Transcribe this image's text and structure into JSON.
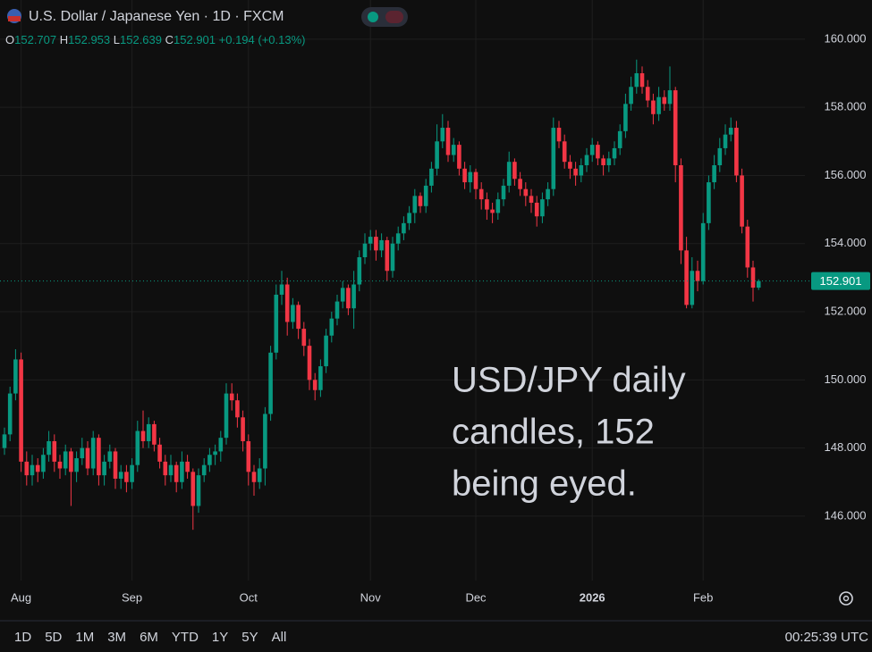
{
  "chart_data": {
    "type": "candlestick",
    "title": "U.S. Dollar / Japanese Yen · 1D · FXCM",
    "ohlc_legend": [
      {
        "label": "O",
        "value": 152.707
      },
      {
        "label": "H",
        "value": 152.953
      },
      {
        "label": "L",
        "value": 152.639
      },
      {
        "label": "C",
        "value": 152.901
      }
    ],
    "change": {
      "value": 0.194,
      "label": "+0.194"
    },
    "change_pct": {
      "value": 0.13,
      "label": "(+0.13%)"
    },
    "last_price": {
      "value": 152.901,
      "label": "152.901"
    },
    "annotation": [
      "USD/JPY daily",
      "candles, 152",
      "being eyed."
    ],
    "up_color": "#089981",
    "down_color": "#f23645",
    "ylim": [
      144.11,
      161.15
    ],
    "yticks": [
      {
        "value": 146,
        "label": "146.000"
      },
      {
        "value": 148,
        "label": "148.000"
      },
      {
        "value": 150,
        "label": "150.000"
      },
      {
        "value": 152,
        "label": "152.000"
      },
      {
        "value": 154,
        "label": "154.000"
      },
      {
        "value": 156,
        "label": "156.000"
      },
      {
        "value": 158,
        "label": "158.000"
      },
      {
        "value": 160,
        "label": "160.000"
      }
    ],
    "grid": true,
    "categories": [
      null,
      null,
      null,
      "Aug",
      null,
      null,
      null,
      null,
      null,
      null,
      null,
      null,
      null,
      null,
      null,
      null,
      null,
      null,
      null,
      null,
      null,
      null,
      null,
      "Sep",
      null,
      null,
      null,
      null,
      null,
      null,
      null,
      null,
      null,
      null,
      null,
      null,
      null,
      null,
      null,
      null,
      null,
      null,
      null,
      null,
      "Oct",
      null,
      null,
      null,
      null,
      null,
      null,
      null,
      null,
      null,
      null,
      null,
      null,
      null,
      null,
      null,
      null,
      null,
      null,
      null,
      null,
      null,
      "Nov",
      null,
      null,
      null,
      null,
      null,
      null,
      null,
      null,
      null,
      null,
      null,
      null,
      null,
      null,
      null,
      null,
      null,
      null,
      "Dec",
      null,
      null,
      null,
      null,
      null,
      null,
      null,
      null,
      null,
      null,
      null,
      null,
      null,
      null,
      null,
      null,
      null,
      null,
      null,
      null,
      "2026",
      null,
      null,
      null,
      null,
      null,
      null,
      null,
      null,
      null,
      null,
      null,
      null,
      null,
      null,
      null,
      null,
      null,
      null,
      null,
      "Feb",
      null,
      null,
      null,
      null,
      null,
      null,
      null,
      null,
      null,
      null
    ],
    "candles": [
      [
        148.0,
        148.6,
        147.8,
        148.4
      ],
      [
        148.4,
        149.8,
        148.2,
        149.6
      ],
      [
        149.6,
        150.9,
        149.4,
        150.6
      ],
      [
        150.6,
        150.8,
        147.3,
        147.6
      ],
      [
        147.6,
        147.9,
        146.9,
        147.2
      ],
      [
        147.2,
        147.8,
        146.9,
        147.5
      ],
      [
        147.5,
        147.7,
        147.0,
        147.3
      ],
      [
        147.3,
        148.0,
        147.1,
        147.8
      ],
      [
        147.8,
        148.5,
        147.6,
        148.2
      ],
      [
        148.2,
        148.4,
        147.3,
        147.6
      ],
      [
        147.6,
        147.8,
        147.1,
        147.4
      ],
      [
        147.4,
        148.1,
        147.2,
        147.9
      ],
      [
        147.9,
        148.0,
        146.3,
        147.3
      ],
      [
        147.3,
        147.9,
        147.0,
        147.7
      ],
      [
        147.7,
        148.3,
        147.5,
        148.0
      ],
      [
        148.0,
        148.2,
        147.2,
        147.4
      ],
      [
        147.4,
        148.5,
        147.2,
        148.3
      ],
      [
        148.3,
        148.4,
        146.9,
        147.2
      ],
      [
        147.2,
        147.8,
        146.9,
        147.6
      ],
      [
        147.6,
        148.1,
        147.4,
        147.9
      ],
      [
        147.9,
        148.0,
        146.8,
        147.1
      ],
      [
        147.1,
        147.5,
        146.8,
        147.3
      ],
      [
        147.3,
        147.5,
        146.7,
        147.0
      ],
      [
        147.0,
        147.7,
        146.8,
        147.5
      ],
      [
        147.5,
        148.8,
        147.3,
        148.5
      ],
      [
        148.5,
        149.1,
        148.0,
        148.2
      ],
      [
        148.2,
        148.9,
        148.0,
        148.7
      ],
      [
        148.7,
        148.8,
        147.9,
        148.1
      ],
      [
        148.1,
        148.3,
        147.4,
        147.6
      ],
      [
        147.6,
        147.8,
        146.9,
        147.2
      ],
      [
        147.2,
        147.8,
        147.0,
        147.5
      ],
      [
        147.5,
        147.6,
        146.7,
        147.0
      ],
      [
        147.0,
        147.9,
        146.8,
        147.6
      ],
      [
        147.6,
        147.8,
        147.1,
        147.3
      ],
      [
        147.3,
        147.4,
        145.6,
        146.3
      ],
      [
        146.3,
        147.4,
        146.1,
        147.2
      ],
      [
        147.2,
        147.7,
        147.0,
        147.5
      ],
      [
        147.5,
        148.0,
        147.3,
        147.8
      ],
      [
        147.8,
        148.1,
        147.5,
        147.9
      ],
      [
        147.9,
        148.5,
        147.6,
        148.3
      ],
      [
        148.3,
        149.9,
        148.1,
        149.6
      ],
      [
        149.6,
        149.9,
        149.1,
        149.4
      ],
      [
        149.4,
        149.6,
        148.6,
        148.9
      ],
      [
        148.9,
        149.1,
        147.9,
        148.2
      ],
      [
        148.2,
        148.4,
        146.9,
        147.3
      ],
      [
        147.3,
        147.5,
        146.6,
        147.0
      ],
      [
        147.0,
        147.7,
        146.8,
        147.4
      ],
      [
        147.4,
        149.2,
        146.9,
        149.0
      ],
      [
        149.0,
        151.0,
        148.8,
        150.8
      ],
      [
        150.8,
        152.8,
        150.6,
        152.5
      ],
      [
        152.5,
        153.2,
        152.2,
        152.8
      ],
      [
        152.8,
        153.0,
        151.3,
        151.7
      ],
      [
        151.7,
        152.4,
        151.5,
        152.2
      ],
      [
        152.2,
        152.3,
        151.2,
        151.5
      ],
      [
        151.5,
        151.7,
        150.7,
        151.0
      ],
      [
        151.0,
        151.2,
        149.7,
        150.0
      ],
      [
        150.0,
        150.2,
        149.4,
        149.7
      ],
      [
        149.7,
        150.6,
        149.5,
        150.4
      ],
      [
        150.4,
        151.5,
        150.2,
        151.3
      ],
      [
        151.3,
        152.0,
        151.1,
        151.8
      ],
      [
        151.8,
        152.5,
        151.6,
        152.3
      ],
      [
        152.3,
        152.9,
        152.1,
        152.7
      ],
      [
        152.7,
        152.8,
        151.9,
        152.1
      ],
      [
        152.1,
        153.2,
        151.5,
        152.8
      ],
      [
        152.8,
        153.8,
        152.6,
        153.6
      ],
      [
        153.6,
        154.3,
        153.4,
        154.0
      ],
      [
        154.0,
        154.4,
        153.8,
        154.2
      ],
      [
        154.2,
        154.4,
        153.5,
        153.8
      ],
      [
        153.8,
        154.3,
        153.6,
        154.1
      ],
      [
        154.1,
        154.2,
        152.9,
        153.2
      ],
      [
        153.2,
        154.2,
        153.0,
        154.0
      ],
      [
        154.0,
        154.5,
        153.8,
        154.3
      ],
      [
        154.3,
        154.8,
        154.1,
        154.6
      ],
      [
        154.6,
        155.1,
        154.4,
        154.9
      ],
      [
        154.9,
        155.6,
        154.6,
        155.4
      ],
      [
        155.4,
        155.5,
        154.9,
        155.1
      ],
      [
        155.1,
        155.9,
        154.9,
        155.7
      ],
      [
        155.7,
        156.4,
        155.5,
        156.2
      ],
      [
        156.2,
        157.5,
        156.0,
        157.0
      ],
      [
        157.0,
        157.8,
        156.8,
        157.4
      ],
      [
        157.4,
        157.6,
        156.4,
        156.6
      ],
      [
        156.6,
        157.1,
        156.4,
        156.9
      ],
      [
        156.9,
        157.0,
        156.0,
        156.2
      ],
      [
        156.2,
        156.4,
        155.6,
        155.8
      ],
      [
        155.8,
        156.3,
        155.5,
        156.1
      ],
      [
        156.1,
        156.2,
        155.3,
        155.6
      ],
      [
        155.6,
        155.8,
        155.0,
        155.3
      ],
      [
        155.3,
        155.5,
        154.7,
        155.0
      ],
      [
        155.0,
        155.2,
        154.6,
        154.9
      ],
      [
        154.9,
        155.5,
        154.7,
        155.3
      ],
      [
        155.3,
        155.9,
        155.1,
        155.7
      ],
      [
        155.7,
        156.7,
        155.5,
        156.4
      ],
      [
        156.4,
        156.5,
        155.7,
        155.9
      ],
      [
        155.9,
        156.1,
        155.4,
        155.6
      ],
      [
        155.6,
        155.8,
        155.1,
        155.4
      ],
      [
        155.4,
        155.6,
        154.9,
        155.2
      ],
      [
        155.2,
        155.4,
        154.5,
        154.8
      ],
      [
        154.8,
        155.5,
        154.6,
        155.3
      ],
      [
        155.3,
        155.8,
        155.1,
        155.6
      ],
      [
        155.6,
        157.7,
        155.4,
        157.4
      ],
      [
        157.4,
        157.6,
        156.8,
        157.0
      ],
      [
        157.0,
        157.2,
        156.2,
        156.4
      ],
      [
        156.4,
        156.6,
        155.9,
        156.2
      ],
      [
        156.2,
        156.4,
        155.7,
        156.0
      ],
      [
        156.0,
        156.5,
        155.8,
        156.3
      ],
      [
        156.3,
        156.8,
        156.1,
        156.6
      ],
      [
        156.6,
        157.1,
        156.4,
        156.9
      ],
      [
        156.9,
        157.0,
        156.3,
        156.5
      ],
      [
        156.5,
        156.6,
        156.0,
        156.3
      ],
      [
        156.3,
        156.7,
        156.1,
        156.5
      ],
      [
        156.5,
        157.0,
        156.3,
        156.8
      ],
      [
        156.8,
        157.5,
        156.6,
        157.3
      ],
      [
        157.3,
        158.4,
        157.1,
        158.1
      ],
      [
        158.1,
        158.9,
        157.9,
        158.6
      ],
      [
        158.6,
        159.4,
        158.4,
        159.0
      ],
      [
        159.0,
        159.2,
        158.4,
        158.6
      ],
      [
        158.6,
        158.8,
        158.0,
        158.2
      ],
      [
        158.2,
        158.4,
        157.5,
        157.8
      ],
      [
        157.8,
        158.6,
        157.6,
        158.3
      ],
      [
        158.3,
        158.5,
        157.9,
        158.1
      ],
      [
        158.1,
        159.2,
        157.9,
        158.5
      ],
      [
        158.5,
        158.6,
        155.8,
        156.3
      ],
      [
        156.3,
        156.5,
        153.4,
        153.8
      ],
      [
        153.8,
        154.2,
        152.1,
        152.2
      ],
      [
        152.2,
        153.6,
        152.1,
        153.2
      ],
      [
        153.2,
        153.5,
        152.6,
        152.9
      ],
      [
        152.9,
        154.9,
        152.8,
        154.6
      ],
      [
        154.6,
        156.0,
        154.4,
        155.8
      ],
      [
        155.8,
        156.6,
        155.6,
        156.3
      ],
      [
        156.3,
        157.1,
        156.1,
        156.8
      ],
      [
        156.8,
        157.5,
        156.6,
        157.2
      ],
      [
        157.2,
        157.7,
        157.0,
        157.4
      ],
      [
        157.4,
        157.6,
        155.8,
        156.0
      ],
      [
        156.0,
        156.2,
        154.3,
        154.5
      ],
      [
        154.5,
        154.7,
        153.0,
        153.3
      ],
      [
        153.3,
        153.5,
        152.3,
        152.707
      ],
      [
        152.707,
        152.953,
        152.639,
        152.901
      ]
    ],
    "range_buttons": [
      "1D",
      "5D",
      "1M",
      "3M",
      "6M",
      "YTD",
      "1Y",
      "5Y",
      "All"
    ],
    "clock": "00:25:39 UTC"
  }
}
